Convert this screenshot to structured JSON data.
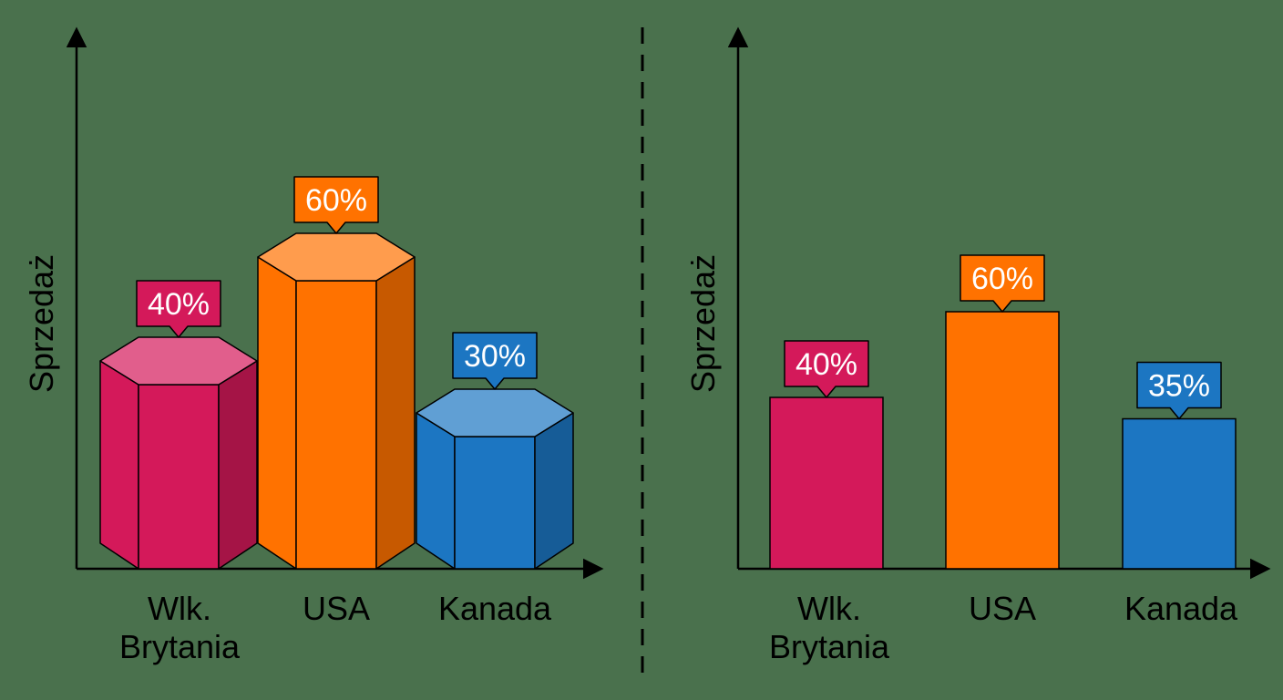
{
  "colors": {
    "background": "#4a714d",
    "axis": "#000000",
    "label_text": "#ffffff",
    "pink": "#d4195a",
    "orange": "#ff7200",
    "blue": "#1c76c2"
  },
  "chart_data": [
    {
      "type": "bar",
      "style": "3d-hexagonal-prism",
      "categories": [
        "Wlk. Brytania",
        "USA",
        "Kanada"
      ],
      "values": [
        40,
        60,
        30
      ],
      "data_labels": [
        "40%",
        "60%",
        "30%"
      ],
      "ylabel": "Sprzedaż",
      "xlabel": "",
      "ylim": [
        0,
        70
      ],
      "grid": false,
      "colors": [
        "pink",
        "orange",
        "blue"
      ]
    },
    {
      "type": "bar",
      "style": "flat",
      "categories": [
        "Wlk. Brytania",
        "USA",
        "Kanada"
      ],
      "values": [
        40,
        60,
        35
      ],
      "data_labels": [
        "40%",
        "60%",
        "35%"
      ],
      "ylabel": "Sprzedaż",
      "xlabel": "",
      "ylim": [
        0,
        70
      ],
      "grid": false,
      "colors": [
        "pink",
        "orange",
        "blue"
      ]
    }
  ]
}
